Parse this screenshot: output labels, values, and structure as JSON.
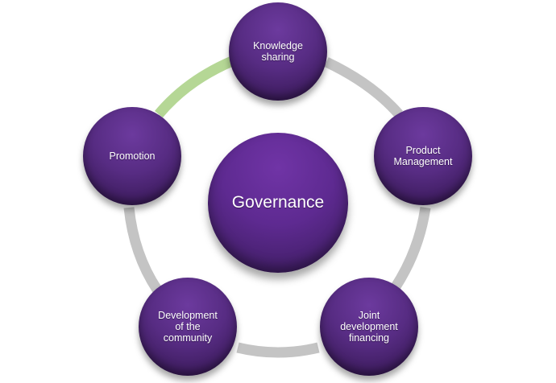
{
  "diagram": {
    "center": {
      "label": "Governance"
    },
    "nodes": [
      {
        "label": "Knowledge\nsharing"
      },
      {
        "label": "Product\nManagement"
      },
      {
        "label": "Joint\ndevelopment\nfinancing"
      },
      {
        "label": "Development\nof the\ncommunity"
      },
      {
        "label": "Promotion"
      }
    ],
    "colors": {
      "ring": "#c4c4c4",
      "ring_highlight": "#b5d795",
      "node_fill": "#572c83",
      "text": "#ffffff"
    }
  }
}
